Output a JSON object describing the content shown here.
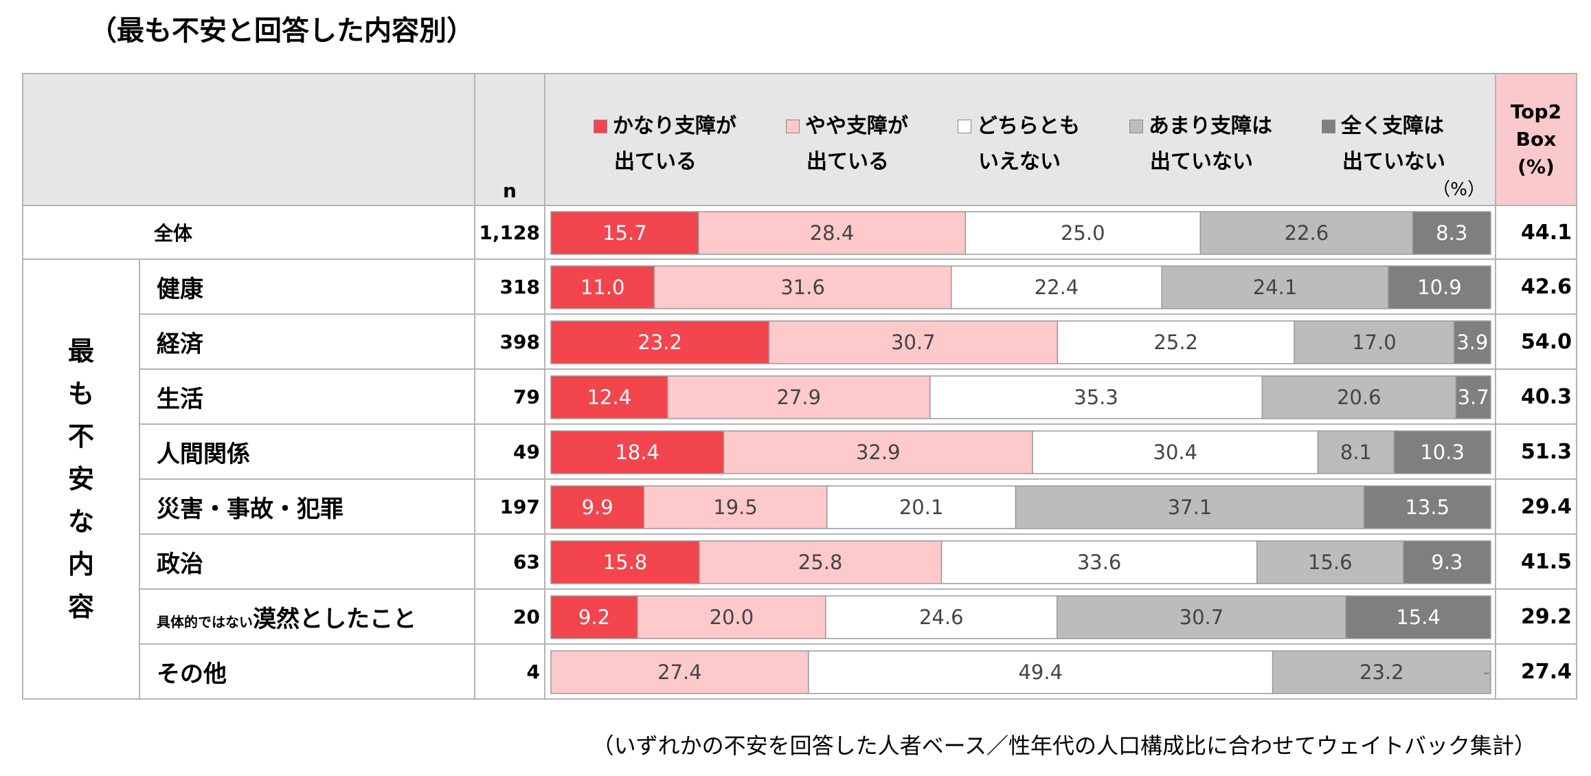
{
  "title": "（最も不安と回答した内容別）",
  "footnote": "（いずれかの不安を回答した人者ベース／性年代の人口構成比に合わせてウェイトバック集計）",
  "header": {
    "n_label": "n",
    "top2_line1": "Top2",
    "top2_line2": "Box",
    "top2_line3": "(%)",
    "pct_unit": "（%）"
  },
  "group_label": [
    "最",
    "も",
    "不",
    "安",
    "な",
    "内",
    "容"
  ],
  "colors": {
    "s1": "#f2454d",
    "s2": "#fdc9cb",
    "s3": "#ffffff",
    "s4": "#bcbcbc",
    "s5": "#7f7f7f",
    "header_bg": "#e6e6e6",
    "top2_bg": "#f9c9cc"
  },
  "chart_data": {
    "type": "bar",
    "orientation": "horizontal-stacked-100",
    "unit": "%",
    "series": [
      {
        "name_line1": "かなり支障が",
        "name_line2": "出ている",
        "values": [
          15.7,
          11.0,
          23.2,
          12.4,
          18.4,
          9.9,
          15.8,
          9.2,
          0
        ]
      },
      {
        "name_line1": "やや支障が",
        "name_line2": "出ている",
        "values": [
          28.4,
          31.6,
          30.7,
          27.9,
          32.9,
          19.5,
          25.8,
          20.0,
          27.4
        ]
      },
      {
        "name_line1": "どちらとも",
        "name_line2": "いえない",
        "values": [
          25.0,
          22.4,
          25.2,
          35.3,
          30.4,
          20.1,
          33.6,
          24.6,
          49.4
        ]
      },
      {
        "name_line1": "あまり支障は",
        "name_line2": "出ていない",
        "values": [
          22.6,
          24.1,
          17.0,
          20.6,
          8.1,
          37.1,
          15.6,
          30.7,
          23.2
        ]
      },
      {
        "name_line1": "全く支障は",
        "name_line2": "出ていない",
        "values": [
          8.3,
          10.9,
          3.9,
          3.7,
          10.3,
          13.5,
          9.3,
          15.4,
          0
        ]
      }
    ],
    "labels": [
      [
        "15.7",
        "28.4",
        "25.0",
        "22.6",
        "8.3"
      ],
      [
        "11.0",
        "31.6",
        "22.4",
        "24.1",
        "10.9"
      ],
      [
        "23.2",
        "30.7",
        "25.2",
        "17.0",
        "3.9"
      ],
      [
        "12.4",
        "27.9",
        "35.3",
        "20.6",
        "3.7"
      ],
      [
        "18.4",
        "32.9",
        "30.4",
        "8.1",
        "10.3"
      ],
      [
        "9.9",
        "19.5",
        "20.1",
        "37.1",
        "13.5"
      ],
      [
        "15.8",
        "25.8",
        "33.6",
        "15.6",
        "9.3"
      ],
      [
        "9.2",
        "20.0",
        "24.6",
        "30.7",
        "15.4"
      ],
      [
        "-",
        "27.4",
        "49.4",
        "23.2",
        "-"
      ]
    ],
    "rows": [
      {
        "label": "全体",
        "n": "1,128",
        "top2": "44.1"
      },
      {
        "label": "健康",
        "n": "318",
        "top2": "42.6"
      },
      {
        "label": "経済",
        "n": "398",
        "top2": "54.0"
      },
      {
        "label": "生活",
        "n": "79",
        "top2": "40.3"
      },
      {
        "label": "人間関係",
        "n": "49",
        "top2": "51.3"
      },
      {
        "label": "災害・事故・犯罪",
        "n": "197",
        "top2": "29.4"
      },
      {
        "label": "政治",
        "n": "63",
        "top2": "41.5"
      },
      {
        "label_small": "具体的ではない",
        "label": "漠然としたこと",
        "n": "20",
        "top2": "29.2"
      },
      {
        "label": "その他",
        "n": "4",
        "top2": "27.4"
      }
    ]
  }
}
